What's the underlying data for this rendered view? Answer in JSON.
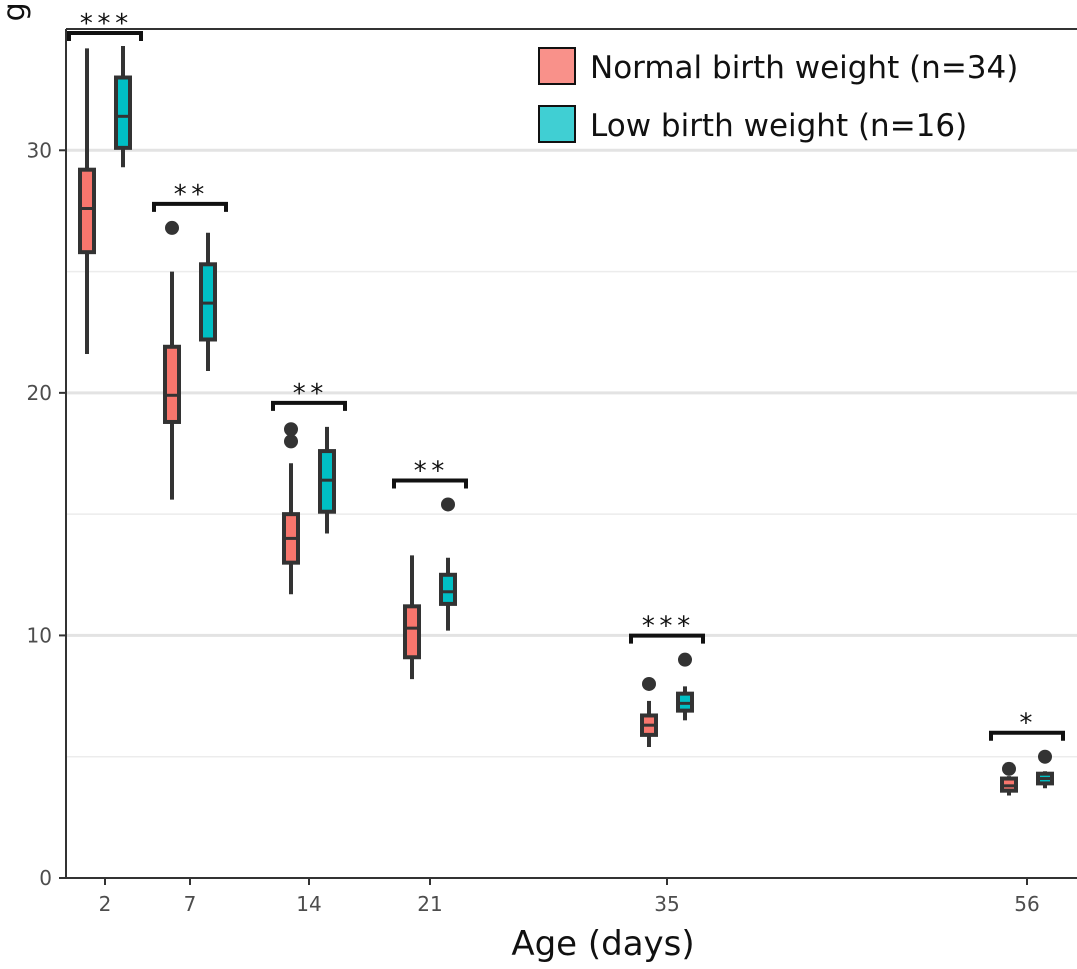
{
  "chart_data": {
    "type": "box",
    "xlabel": "Age (days)",
    "ylabel_fragment": "g)",
    "categories": [
      "2",
      "7",
      "14",
      "21",
      "35",
      "56"
    ],
    "x": [
      2,
      7,
      14,
      21,
      35,
      56
    ],
    "ylim": [
      0,
      35
    ],
    "yticks": [
      0,
      10,
      20,
      30
    ],
    "grid": {
      "major_y": [
        10,
        20,
        30
      ],
      "minor_y": [
        5,
        15,
        25
      ]
    },
    "legend": {
      "position": "top-right"
    },
    "series": [
      {
        "name": "Normal birth weight (n=34)",
        "color": "#F8766D",
        "boxes": [
          {
            "x": 2,
            "whisker_low": 21.6,
            "q1": 25.8,
            "median": 27.6,
            "q3": 29.2,
            "whisker_high": 34.2,
            "outliers": []
          },
          {
            "x": 7,
            "whisker_low": 15.6,
            "q1": 18.8,
            "median": 19.9,
            "q3": 21.9,
            "whisker_high": 25.0,
            "outliers": [
              26.8
            ]
          },
          {
            "x": 14,
            "whisker_low": 11.7,
            "q1": 13.0,
            "median": 14.0,
            "q3": 15.0,
            "whisker_high": 17.1,
            "outliers": [
              18.0,
              18.5
            ]
          },
          {
            "x": 21,
            "whisker_low": 8.2,
            "q1": 9.1,
            "median": 10.3,
            "q3": 11.2,
            "whisker_high": 13.3,
            "outliers": []
          },
          {
            "x": 35,
            "whisker_low": 5.4,
            "q1": 5.9,
            "median": 6.3,
            "q3": 6.7,
            "whisker_high": 7.3,
            "outliers": [
              8.0
            ]
          },
          {
            "x": 56,
            "whisker_low": 3.4,
            "q1": 3.6,
            "median": 3.8,
            "q3": 4.1,
            "whisker_high": 4.2,
            "outliers": [
              4.5
            ]
          }
        ]
      },
      {
        "name": "Low birth weight (n=16)",
        "color": "#00BFC4",
        "boxes": [
          {
            "x": 2,
            "whisker_low": 29.3,
            "q1": 30.1,
            "median": 31.4,
            "q3": 33.0,
            "whisker_high": 34.3,
            "outliers": []
          },
          {
            "x": 7,
            "whisker_low": 20.9,
            "q1": 22.2,
            "median": 23.7,
            "q3": 25.3,
            "whisker_high": 26.6,
            "outliers": []
          },
          {
            "x": 14,
            "whisker_low": 14.2,
            "q1": 15.1,
            "median": 16.4,
            "q3": 17.6,
            "whisker_high": 18.6,
            "outliers": []
          },
          {
            "x": 21,
            "whisker_low": 10.2,
            "q1": 11.3,
            "median": 11.8,
            "q3": 12.5,
            "whisker_high": 13.2,
            "outliers": [
              15.4
            ]
          },
          {
            "x": 35,
            "whisker_low": 6.5,
            "q1": 6.9,
            "median": 7.2,
            "q3": 7.6,
            "whisker_high": 7.9,
            "outliers": [
              9.0
            ]
          },
          {
            "x": 56,
            "whisker_low": 3.7,
            "q1": 3.9,
            "median": 4.1,
            "q3": 4.3,
            "whisker_high": 4.4,
            "outliers": [
              5.0
            ]
          }
        ]
      }
    ],
    "significance": [
      {
        "x": 2,
        "label": "***"
      },
      {
        "x": 7,
        "label": "**"
      },
      {
        "x": 14,
        "label": "**"
      },
      {
        "x": 21,
        "label": "**"
      },
      {
        "x": 35,
        "label": "***"
      },
      {
        "x": 56,
        "label": "*"
      }
    ]
  }
}
